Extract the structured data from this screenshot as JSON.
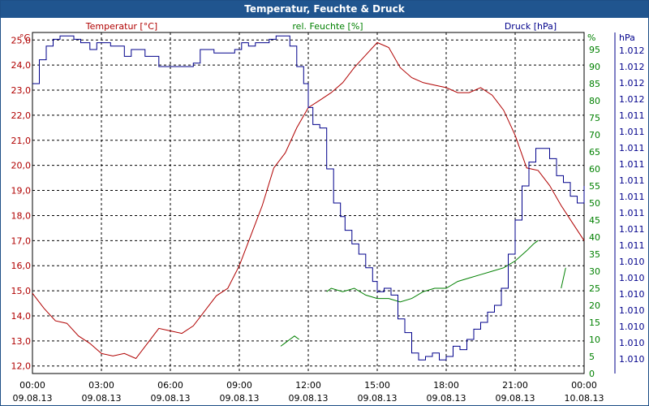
{
  "window": {
    "title": "Temperatur, Feuchte & Druck"
  },
  "colors": {
    "temperature": "#b00000",
    "humidity": "#008000",
    "pressure": "#00008b",
    "grid": "#000000",
    "title_bg": "#20558f"
  },
  "chart_data": {
    "type": "line",
    "title": "Temperatur, Feuchte & Druck",
    "x_ticks": [
      {
        "time": "00:00",
        "date": "09.08.13"
      },
      {
        "time": "03:00",
        "date": "09.08.13"
      },
      {
        "time": "06:00",
        "date": "09.08.13"
      },
      {
        "time": "09:00",
        "date": "09.08.13"
      },
      {
        "time": "12:00",
        "date": "09.08.13"
      },
      {
        "time": "15:00",
        "date": "09.08.13"
      },
      {
        "time": "18:00",
        "date": "09.08.13"
      },
      {
        "time": "21:00",
        "date": "09.08.13"
      },
      {
        "time": "00:00",
        "date": "10.08.13"
      }
    ],
    "x_range_hours": [
      0,
      24
    ],
    "axes": {
      "temperature": {
        "unit": "°C",
        "legend": "Temperatur [°C]",
        "ylim": [
          11.7,
          25.3
        ],
        "ticks": [
          "25,0",
          "24,0",
          "23,0",
          "22,0",
          "21,0",
          "20,0",
          "19,0",
          "18,0",
          "17,0",
          "16,0",
          "15,0",
          "14,0",
          "13,0",
          "12,0"
        ]
      },
      "humidity": {
        "unit": "%",
        "legend": "rel. Feuchte [%]",
        "ylim": [
          0,
          100
        ],
        "ticks": [
          "95",
          "90",
          "85",
          "80",
          "75",
          "70",
          "65",
          "60",
          "55",
          "50",
          "45",
          "40",
          "35",
          "30",
          "25",
          "20",
          "15",
          "10",
          "5",
          "0"
        ]
      },
      "pressure": {
        "unit": "hPa",
        "legend": "Druck [hPa]",
        "ticks": [
          "1.012",
          "1.012",
          "1.012",
          "1.012",
          "1.011",
          "1.011",
          "1.011",
          "1.011",
          "1.011",
          "1.011",
          "1.011",
          "1.011",
          "1.011",
          "1.010",
          "1.010",
          "1.010",
          "1.010",
          "1.010",
          "1.010",
          "1.010"
        ]
      }
    },
    "series": [
      {
        "name": "Temperatur [°C]",
        "axis": "temperature",
        "x": [
          0,
          0.5,
          1,
          1.5,
          2,
          2.5,
          3,
          3.5,
          4,
          4.5,
          5,
          5.5,
          6,
          6.5,
          7,
          7.5,
          8,
          8.5,
          9,
          9.5,
          10,
          10.5,
          11,
          11.5,
          12,
          12.5,
          13,
          13.5,
          14,
          14.5,
          15,
          15.5,
          16,
          16.5,
          17,
          17.5,
          18,
          18.5,
          19,
          19.5,
          20,
          20.5,
          21,
          21.5,
          22,
          22.5,
          23,
          23.5,
          24
        ],
        "values": [
          14.9,
          14.3,
          13.8,
          13.7,
          13.2,
          12.9,
          12.5,
          12.4,
          12.5,
          12.3,
          12.9,
          13.5,
          13.4,
          13.3,
          13.6,
          14.2,
          14.8,
          15.1,
          16.0,
          17.2,
          18.4,
          19.9,
          20.5,
          21.5,
          22.3,
          22.6,
          22.9,
          23.3,
          23.9,
          24.4,
          24.9,
          24.7,
          23.9,
          23.5,
          23.3,
          23.2,
          23.1,
          22.9,
          22.9,
          23.1,
          22.8,
          22.2,
          21.2,
          19.9,
          19.8,
          19.2,
          18.4,
          17.7,
          17.0
        ]
      },
      {
        "name": "rel. Feuchte [%]",
        "axis": "humidity",
        "segments": [
          {
            "x": [
              10.8,
              11.0,
              11.2,
              11.4,
              11.6
            ],
            "values": [
              8,
              9,
              10,
              11,
              10
            ]
          },
          {
            "x": [
              12.8,
              13.0,
              13.5,
              14.0,
              14.5,
              15.0,
              15.5,
              16.0,
              16.5,
              17.0,
              17.5,
              18.0,
              18.5,
              19.0,
              19.5,
              20.0,
              20.5,
              21.0,
              21.5,
              21.8,
              22.0
            ],
            "values": [
              24,
              25,
              24,
              25,
              23,
              22,
              22,
              21,
              22,
              24,
              25,
              25,
              27,
              28,
              29,
              30,
              31,
              33,
              36,
              38,
              39
            ]
          },
          {
            "x": [
              23.0,
              23.2
            ],
            "values": [
              25,
              31
            ]
          }
        ]
      },
      {
        "name": "Druck [hPa]",
        "axis": "pressure",
        "scale": "axis-fraction",
        "x": [
          0,
          0.3,
          0.6,
          0.9,
          1.2,
          1.5,
          1.8,
          2.1,
          2.5,
          2.8,
          3.1,
          3.4,
          3.7,
          4.0,
          4.3,
          4.6,
          4.9,
          5.2,
          5.5,
          5.8,
          6.1,
          6.4,
          6.7,
          7.0,
          7.3,
          7.6,
          7.9,
          8.2,
          8.5,
          8.8,
          9.1,
          9.4,
          9.7,
          10.0,
          10.3,
          10.6,
          10.9,
          11.2,
          11.5,
          11.8,
          12.0,
          12.2,
          12.5,
          12.8,
          13.1,
          13.4,
          13.6,
          13.9,
          14.2,
          14.5,
          14.8,
          15.0,
          15.3,
          15.6,
          15.9,
          16.2,
          16.5,
          16.8,
          17.1,
          17.4,
          17.7,
          18.0,
          18.3,
          18.6,
          18.9,
          19.2,
          19.5,
          19.8,
          20.1,
          20.4,
          20.7,
          21.0,
          21.3,
          21.6,
          21.9,
          22.2,
          22.5,
          22.8,
          23.1,
          23.4,
          23.7,
          24.0
        ],
        "values": [
          0.85,
          0.92,
          0.96,
          0.98,
          0.99,
          0.99,
          0.98,
          0.97,
          0.95,
          0.97,
          0.97,
          0.96,
          0.96,
          0.93,
          0.95,
          0.95,
          0.93,
          0.93,
          0.9,
          0.9,
          0.9,
          0.9,
          0.9,
          0.91,
          0.95,
          0.95,
          0.94,
          0.94,
          0.94,
          0.95,
          0.97,
          0.96,
          0.97,
          0.97,
          0.98,
          0.99,
          0.99,
          0.96,
          0.9,
          0.85,
          0.78,
          0.73,
          0.72,
          0.6,
          0.5,
          0.46,
          0.42,
          0.38,
          0.35,
          0.31,
          0.27,
          0.24,
          0.25,
          0.23,
          0.16,
          0.12,
          0.06,
          0.04,
          0.05,
          0.06,
          0.04,
          0.05,
          0.08,
          0.07,
          0.1,
          0.13,
          0.15,
          0.18,
          0.2,
          0.25,
          0.35,
          0.45,
          0.55,
          0.62,
          0.66,
          0.66,
          0.63,
          0.58,
          0.56,
          0.52,
          0.5,
          0.55
        ]
      }
    ]
  }
}
